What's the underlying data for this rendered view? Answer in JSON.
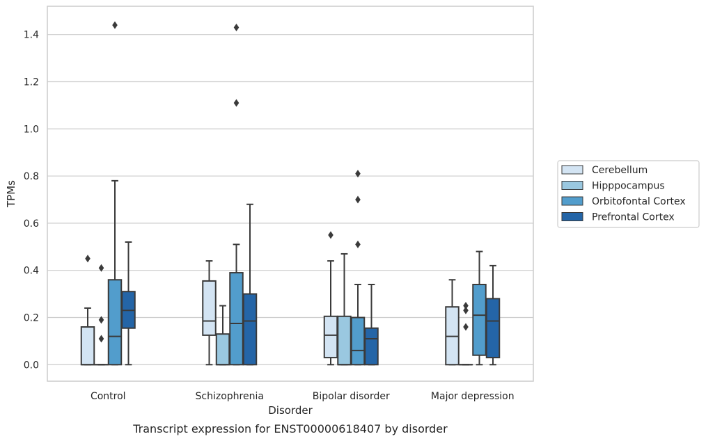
{
  "chart_data": {
    "type": "box",
    "xlabel": "Disorder",
    "ylabel": "TPMs",
    "caption": "Transcript expression for ENST00000618407 by disorder",
    "categories": [
      "Control",
      "Schizophrenia",
      "Bipolar disorder",
      "Major depression"
    ],
    "ylim": [
      -0.07,
      1.52
    ],
    "yticks": [
      "0.0",
      "0.2",
      "0.4",
      "0.6",
      "0.8",
      "1.0",
      "1.2",
      "1.4"
    ],
    "grid": "horizontal",
    "legend_position": "right",
    "series": [
      {
        "name": "Cerebellum",
        "color": "#d3e4f3",
        "boxes": [
          {
            "min": 0.0,
            "q1": 0.0,
            "median": 0.0,
            "q3": 0.16,
            "max": 0.24,
            "outliers": [
              0.45
            ]
          },
          {
            "min": 0.0,
            "q1": 0.125,
            "median": 0.185,
            "q3": 0.355,
            "max": 0.44,
            "outliers": []
          },
          {
            "min": 0.0,
            "q1": 0.03,
            "median": 0.125,
            "q3": 0.205,
            "max": 0.44,
            "outliers": [
              0.55
            ]
          },
          {
            "min": 0.0,
            "q1": 0.0,
            "median": 0.12,
            "q3": 0.245,
            "max": 0.36,
            "outliers": []
          }
        ]
      },
      {
        "name": "Hipppocampus",
        "color": "#9ac8e0",
        "boxes": [
          {
            "min": 0.0,
            "q1": 0.0,
            "median": 0.0,
            "q3": 0.0,
            "max": 0.0,
            "outliers": [
              0.11,
              0.19,
              0.41
            ]
          },
          {
            "min": 0.0,
            "q1": 0.0,
            "median": 0.0,
            "q3": 0.13,
            "max": 0.25,
            "outliers": []
          },
          {
            "min": 0.0,
            "q1": 0.0,
            "median": 0.0,
            "q3": 0.205,
            "max": 0.47,
            "outliers": []
          },
          {
            "min": 0.0,
            "q1": 0.0,
            "median": 0.0,
            "q3": 0.0,
            "max": 0.0,
            "outliers": [
              0.16,
              0.23,
              0.25
            ]
          }
        ]
      },
      {
        "name": "Orbitofontal Cortex",
        "color": "#529dcc",
        "boxes": [
          {
            "min": 0.0,
            "q1": 0.0,
            "median": 0.12,
            "q3": 0.36,
            "max": 0.78,
            "outliers": [
              1.44
            ]
          },
          {
            "min": 0.0,
            "q1": 0.0,
            "median": 0.175,
            "q3": 0.39,
            "max": 0.51,
            "outliers": [
              1.11,
              1.43
            ]
          },
          {
            "min": 0.0,
            "q1": 0.0,
            "median": 0.06,
            "q3": 0.2,
            "max": 0.34,
            "outliers": [
              0.51,
              0.7,
              0.81
            ]
          },
          {
            "min": 0.0,
            "q1": 0.04,
            "median": 0.21,
            "q3": 0.34,
            "max": 0.48,
            "outliers": []
          }
        ]
      },
      {
        "name": "Prefrontal Cortex",
        "color": "#2465a7",
        "boxes": [
          {
            "min": 0.0,
            "q1": 0.155,
            "median": 0.23,
            "q3": 0.31,
            "max": 0.52,
            "outliers": []
          },
          {
            "min": 0.0,
            "q1": 0.0,
            "median": 0.185,
            "q3": 0.3,
            "max": 0.68,
            "outliers": []
          },
          {
            "min": 0.0,
            "q1": 0.0,
            "median": 0.11,
            "q3": 0.155,
            "max": 0.34,
            "outliers": []
          },
          {
            "min": 0.0,
            "q1": 0.03,
            "median": 0.185,
            "q3": 0.28,
            "max": 0.42,
            "outliers": []
          }
        ]
      }
    ]
  }
}
